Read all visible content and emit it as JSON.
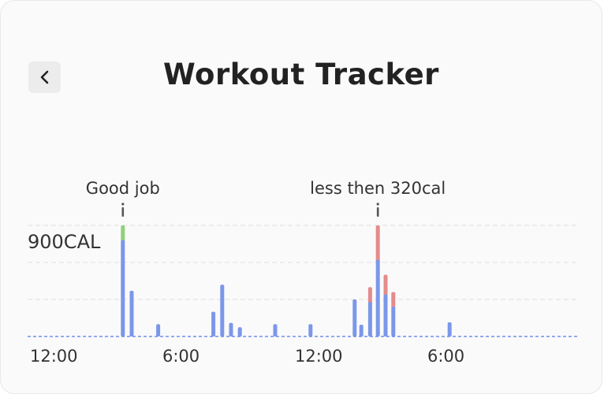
{
  "header": {
    "title": "Workout Tracker",
    "back_icon": "chevron-left-icon"
  },
  "chart_data": {
    "type": "bar",
    "ylabel_tick": "900CAL",
    "ymax": 900,
    "x_tick_labels": [
      "12:00",
      "6:00",
      "12:00",
      "6:00"
    ],
    "series_colors": {
      "base": "#7b97ea",
      "over_goal": "#e58b8b",
      "goal_met": "#8fd17a",
      "baseline": "#6f8fe6",
      "grid": "#e3e3e3"
    },
    "annotations": [
      {
        "text": "Good job",
        "bar_index": 0
      },
      {
        "text": "less then 320cal",
        "bar_index": 19
      }
    ],
    "bars": [
      {
        "x": 15.6,
        "blue": 780,
        "top": 120,
        "top_color": "goal_met"
      },
      {
        "x": 16.0,
        "blue": 370
      },
      {
        "x": 17.2,
        "blue": 100
      },
      {
        "x": 19.7,
        "blue": 200
      },
      {
        "x": 20.1,
        "blue": 420
      },
      {
        "x": 20.5,
        "blue": 110
      },
      {
        "x": 20.9,
        "blue": 75
      },
      {
        "x": 22.5,
        "blue": 100
      },
      {
        "x": 24.1,
        "blue": 100
      },
      {
        "x": 26.1,
        "blue": 300
      },
      {
        "x": 26.4,
        "blue": 95
      },
      {
        "x": 26.8,
        "blue": 280,
        "top": 120,
        "top_color": "over_goal"
      },
      {
        "x": 27.15,
        "blue": 620,
        "top": 280,
        "top_color": "over_goal"
      },
      {
        "x": 27.5,
        "blue": 340,
        "top": 160,
        "top_color": "over_goal"
      },
      {
        "x": 27.85,
        "blue": 240,
        "top": 120,
        "top_color": "over_goal"
      },
      {
        "x": 30.4,
        "blue": 115
      }
    ]
  }
}
